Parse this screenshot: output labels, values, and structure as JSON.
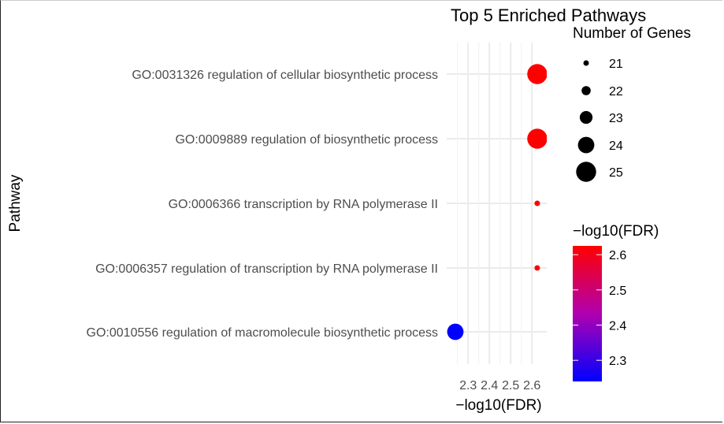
{
  "chart_data": {
    "type": "scatter",
    "title": "Top 5 Enriched Pathways",
    "xlabel": "−log10(FDR)",
    "ylabel": "Pathway",
    "xlim": [
      2.24,
      2.64
    ],
    "xticks": [
      2.3,
      2.4,
      2.5,
      2.6
    ],
    "xtick_labels": [
      "2.3",
      "2.4",
      "2.5",
      "2.6"
    ],
    "grid": true,
    "points": [
      {
        "pathway": "GO:0031326 regulation of cellular biosynthetic process",
        "x": 2.625,
        "genes": 25,
        "fdr_color_value": 2.625
      },
      {
        "pathway": "GO:0009889 regulation of biosynthetic process",
        "x": 2.625,
        "genes": 25,
        "fdr_color_value": 2.625
      },
      {
        "pathway": "GO:0006366 transcription by RNA polymerase II",
        "x": 2.625,
        "genes": 21,
        "fdr_color_value": 2.625
      },
      {
        "pathway": "GO:0006357 regulation of transcription by RNA polymerase II",
        "x": 2.625,
        "genes": 21,
        "fdr_color_value": 2.625
      },
      {
        "pathway": "GO:0010556 regulation of macromolecule biosynthetic process",
        "x": 2.24,
        "genes": 24,
        "fdr_color_value": 2.24
      }
    ],
    "size_legend": {
      "title": "Number of Genes",
      "values": [
        21,
        22,
        23,
        24,
        25
      ],
      "labels": [
        "21",
        "22",
        "23",
        "24",
        "25"
      ]
    },
    "color_legend": {
      "title": "−log10(FDR)",
      "low_color": "#0000ff",
      "high_color": "#ff0000",
      "range": [
        2.24,
        2.625
      ],
      "ticks": [
        2.3,
        2.4,
        2.5,
        2.6
      ],
      "tick_labels": [
        "2.3",
        "2.4",
        "2.5",
        "2.6"
      ]
    },
    "legend_position": "right"
  }
}
